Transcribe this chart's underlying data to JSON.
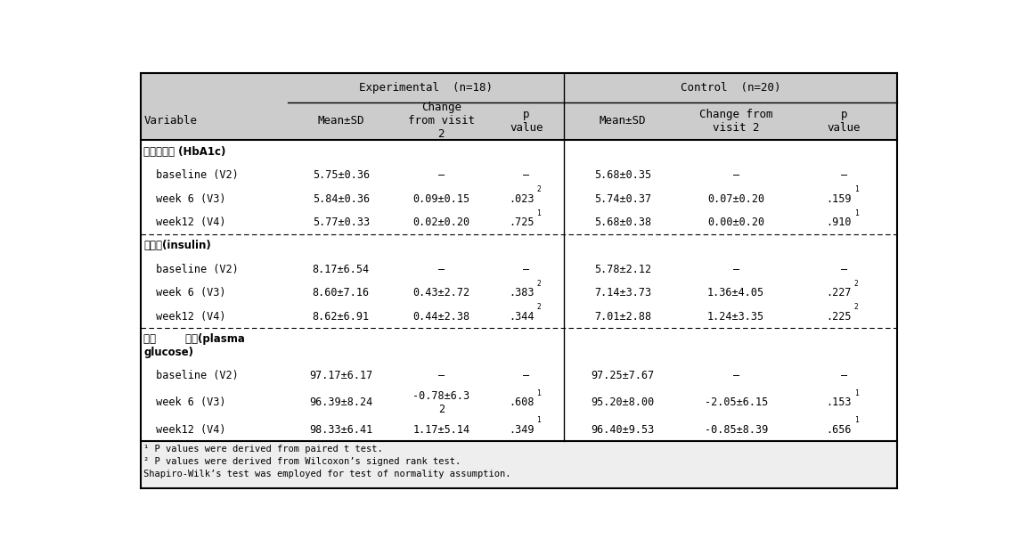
{
  "sections": [
    {
      "section_label": "당화혁색소 (HbA1c)",
      "rows": [
        {
          "label": " baseline (V2)",
          "exp_mean": "5.75±0.36",
          "exp_change": "–",
          "exp_p": "–",
          "ctrl_mean": "5.68±0.35",
          "ctrl_change": "–",
          "ctrl_p": "–"
        },
        {
          "label": " week 6 (V3)",
          "exp_mean": "5.84±0.36",
          "exp_change": "0.09±0.15",
          "exp_p": ".023",
          "exp_p_sup": "2",
          "ctrl_mean": "5.74±0.37",
          "ctrl_change": "0.07±0.20",
          "ctrl_p": ".159",
          "ctrl_p_sup": "1"
        },
        {
          "label": " week12 (V4)",
          "exp_mean": "5.77±0.33",
          "exp_change": "0.02±0.20",
          "exp_p": ".725",
          "exp_p_sup": "1",
          "ctrl_mean": "5.68±0.38",
          "ctrl_change": "0.00±0.20",
          "ctrl_p": ".910",
          "ctrl_p_sup": "1"
        }
      ]
    },
    {
      "section_label": "인슬린(insulin)",
      "rows": [
        {
          "label": " baseline (V2)",
          "exp_mean": "8.17±6.54",
          "exp_change": "–",
          "exp_p": "–",
          "ctrl_mean": "5.78±2.12",
          "ctrl_change": "–",
          "ctrl_p": "–"
        },
        {
          "label": " week 6 (V3)",
          "exp_mean": "8.60±7.16",
          "exp_change": "0.43±2.72",
          "exp_p": ".383",
          "exp_p_sup": "2",
          "ctrl_mean": "7.14±3.73",
          "ctrl_change": "1.36±4.05",
          "ctrl_p": ".227",
          "ctrl_p_sup": "2"
        },
        {
          "label": " week12 (V4)",
          "exp_mean": "8.62±6.91",
          "exp_change": "0.44±2.38",
          "exp_p": ".344",
          "exp_p_sup": "2",
          "ctrl_mean": "7.01±2.88",
          "ctrl_change": "1.24±3.35",
          "ctrl_p": ".225",
          "ctrl_p_sup": "2"
        }
      ]
    },
    {
      "section_label": "협중        협당(plasma\nglucose)",
      "rows": [
        {
          "label": " baseline (V2)",
          "exp_mean": "97.17±6.17",
          "exp_change": "–",
          "exp_p": "–",
          "ctrl_mean": "97.25±7.67",
          "ctrl_change": "–",
          "ctrl_p": "–"
        },
        {
          "label": " week 6 (V3)",
          "exp_mean": "96.39±8.24",
          "exp_change": "-0.78±6.3\n2",
          "exp_p": ".608",
          "exp_p_sup": "1",
          "ctrl_mean": "95.20±8.00",
          "ctrl_change": "-2.05±6.15",
          "ctrl_p": ".153",
          "ctrl_p_sup": "1"
        },
        {
          "label": " week12 (V4)",
          "exp_mean": "98.33±6.41",
          "exp_change": "1.17±5.14",
          "exp_p": ".349",
          "exp_p_sup": "1",
          "ctrl_mean": "96.40±9.53",
          "ctrl_change": "-0.85±8.39",
          "ctrl_p": ".656",
          "ctrl_p_sup": "1"
        }
      ]
    }
  ],
  "footnotes": [
    "¹ P values were derived from paired t test.",
    "² P values were derived from Wilcoxon’s signed rank test.",
    "Shapiro-Wilk’s test was employed for test of normality assumption."
  ],
  "header_bg": "#cccccc",
  "footer_bg": "#eeeeee",
  "font_size": 8.5
}
